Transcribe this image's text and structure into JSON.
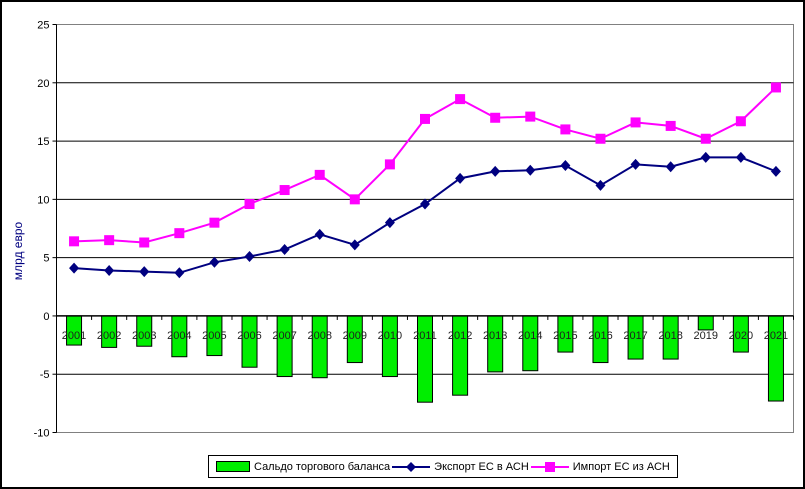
{
  "chart_data": {
    "type": "combo-bar-line",
    "title": "",
    "categories": [
      "2001",
      "2002",
      "2003",
      "2004",
      "2005",
      "2006",
      "2007",
      "2008",
      "2009",
      "2010",
      "2011",
      "2012",
      "2013",
      "2014",
      "2015",
      "2016",
      "2017",
      "2018",
      "2019",
      "2020",
      "2021"
    ],
    "series": [
      {
        "name": "Сальдо торгового баланса",
        "type": "bar",
        "marker": "rect",
        "color": "#00EE00",
        "border_color": "#000000",
        "values": [
          -2.5,
          -2.7,
          -2.6,
          -3.5,
          -3.4,
          -4.4,
          -5.2,
          -5.3,
          -4.0,
          -5.2,
          -7.4,
          -6.8,
          -4.8,
          -4.7,
          -3.1,
          -4.0,
          -3.7,
          -3.7,
          -1.2,
          -3.1,
          -7.3
        ]
      },
      {
        "name": "Экспорт ЕС в АСН",
        "type": "line",
        "marker": "diamond",
        "color": "#000080",
        "values": [
          4.1,
          3.9,
          3.8,
          3.7,
          4.6,
          5.1,
          5.7,
          7.0,
          6.1,
          8.0,
          9.6,
          11.8,
          12.4,
          12.5,
          12.9,
          11.2,
          13.0,
          12.8,
          13.6,
          13.6,
          12.4
        ]
      },
      {
        "name": "Импорт ЕС из АСН",
        "type": "line",
        "marker": "square",
        "color": "#FF00FF",
        "values": [
          6.4,
          6.5,
          6.3,
          7.1,
          8.0,
          9.6,
          10.8,
          12.1,
          10.0,
          13.0,
          16.9,
          18.6,
          17.0,
          17.1,
          16.0,
          15.2,
          16.6,
          16.3,
          15.2,
          16.7,
          19.6
        ]
      }
    ],
    "xlabel": "",
    "ylabel": "млрд евро",
    "ylim": [
      -10,
      25
    ],
    "ytick_step": 5,
    "y_ticks": [
      25,
      20,
      15,
      10,
      5,
      0,
      -5,
      -10
    ],
    "grid": true,
    "legend_position": "bottom",
    "colors": {
      "background": "#ffffff",
      "figure_border": "#000000",
      "plot_border": "#808080",
      "gridline": "#000000",
      "axis_line": "#000000",
      "tick_label": "#000000",
      "year_label": "#1f1f1f",
      "ylabel_color": "#000080"
    }
  }
}
